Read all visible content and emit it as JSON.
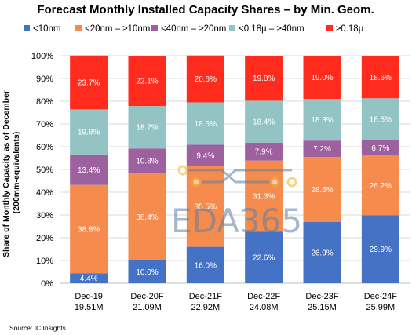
{
  "chart_data": {
    "type": "bar",
    "stacked": true,
    "title": "Forecast Monthly Installed Capacity Shares – by Min. Geom.",
    "ylabel_line1": "Share of Monthly Capacity as of December",
    "ylabel_line2": "(200mm-equivalents)",
    "ylim": [
      0,
      100
    ],
    "yticks": [
      "0%",
      "10%",
      "20%",
      "30%",
      "40%",
      "50%",
      "60%",
      "70%",
      "80%",
      "90%",
      "100%"
    ],
    "grid": true,
    "legend_position": "top",
    "categories": [
      "Dec-19",
      "Dec-20F",
      "Dec-21F",
      "Dec-22F",
      "Dec-23F",
      "Dec-24F"
    ],
    "sublabels": [
      "19.51M",
      "21.09M",
      "22.92M",
      "24.08M",
      "25.15M",
      "25.99M"
    ],
    "series": [
      {
        "name": "<10nm",
        "color": "#4472c4",
        "values": [
          4.4,
          10.0,
          16.0,
          22.6,
          26.9,
          29.9
        ],
        "labels": [
          "4.4%",
          "10.0%",
          "16.0%",
          "22.6%",
          "26.9%",
          "29.9%"
        ]
      },
      {
        "name": "<20nm – ≥10nm",
        "color": "#f58b4c",
        "values": [
          38.8,
          38.4,
          35.5,
          31.3,
          28.6,
          26.2
        ],
        "labels": [
          "38.8%",
          "38.4%",
          "35.5%",
          "31.3%",
          "28.6%",
          "26.2%"
        ]
      },
      {
        "name": "<40nm – ≥20nm",
        "color": "#9e61a0",
        "values": [
          13.4,
          10.8,
          9.4,
          7.9,
          7.2,
          6.7
        ],
        "labels": [
          "13.4%",
          "10.8%",
          "9.4%",
          "7.9%",
          "7.2%",
          "6.7%"
        ]
      },
      {
        "name": "<0.18µ – ≥40nm",
        "color": "#93c3c3",
        "values": [
          19.8,
          18.7,
          18.6,
          18.4,
          18.3,
          18.5
        ],
        "labels": [
          "19.8%",
          "18.7%",
          "18.6%",
          "18.4%",
          "18.3%",
          "18.5%"
        ]
      },
      {
        "name": "≥0.18µ",
        "color": "#ff2b1c",
        "values": [
          23.7,
          22.1,
          20.6,
          19.8,
          19.0,
          18.6
        ],
        "labels": [
          "23.7%",
          "22.1%",
          "20.6%",
          "19.8%",
          "19.0%",
          "18.6%"
        ]
      }
    ]
  },
  "source": "Source:  IC Insights",
  "watermark": {
    "text": "EDA365"
  }
}
